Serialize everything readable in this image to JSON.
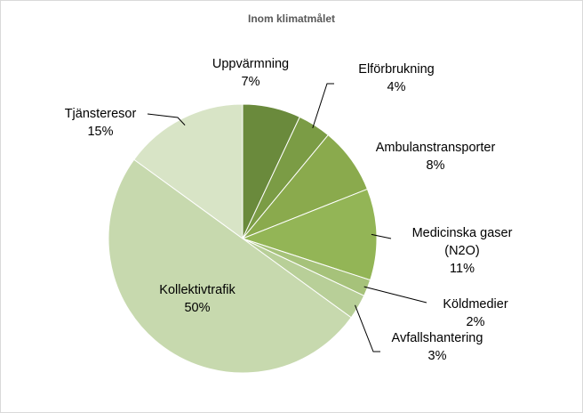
{
  "chart_data": {
    "type": "pie",
    "title": "Inom klimatmålet",
    "start_angle_deg": 0,
    "direction": "clockwise",
    "slices": [
      {
        "label": "Uppvärmning",
        "value": 7,
        "value_label": "7%",
        "color": "#6a8a3c"
      },
      {
        "label": "Elförbrukning",
        "value": 4,
        "value_label": "4%",
        "color": "#7b9c45"
      },
      {
        "label": "Ambulanstransporter",
        "value": 8,
        "value_label": "8%",
        "color": "#8aaa4d"
      },
      {
        "label": "Medicinska gaser (N2O)",
        "label_lines": [
          "Medicinska gaser",
          "(N2O)"
        ],
        "value": 11,
        "value_label": "11%",
        "color": "#93b556"
      },
      {
        "label": "Köldmedier",
        "value": 2,
        "value_label": "2%",
        "color": "#a6c27a"
      },
      {
        "label": "Avfallshantering",
        "value": 3,
        "value_label": "3%",
        "color": "#b8cf98"
      },
      {
        "label": "Kollektivtrafik",
        "value": 50,
        "value_label": "50%",
        "color": "#c7d9ae"
      },
      {
        "label": "Tjänsteresor",
        "value": 15,
        "value_label": "15%",
        "color": "#d8e4c6"
      }
    ]
  }
}
